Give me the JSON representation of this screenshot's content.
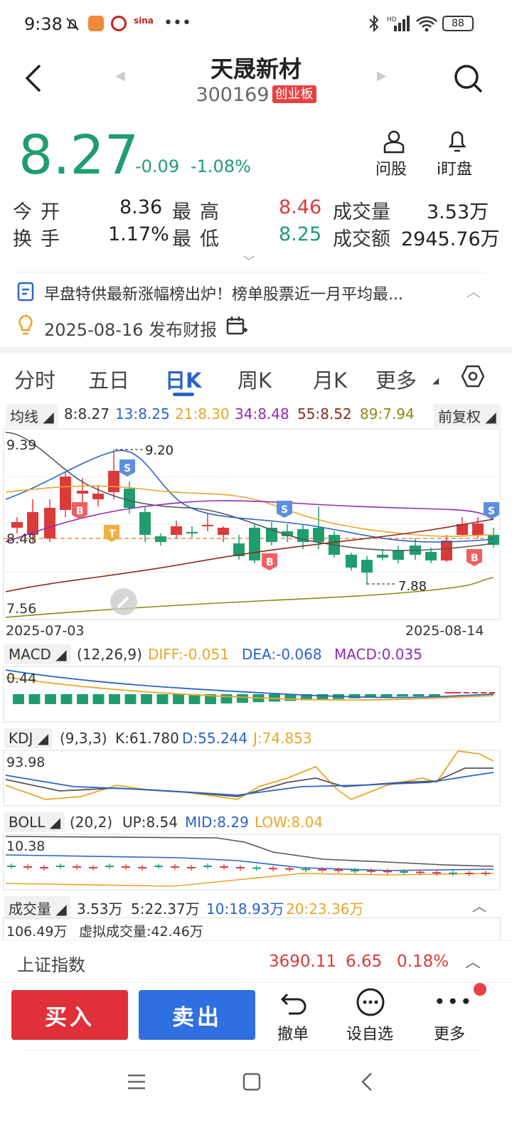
{
  "status_bar": {
    "time": "9:38",
    "battery": "88"
  },
  "header": {
    "title": "天晟新材",
    "code": "300169",
    "board_badge": "创业板"
  },
  "quote": {
    "price": "8.27",
    "change": "-0.09",
    "change_pct": "-1.08%",
    "btn_stock": "问股",
    "btn_watch": "i盯盘"
  },
  "stats": {
    "open_label": "今开",
    "open": "8.36",
    "high_label": "最高",
    "high": "8.46",
    "volume_label": "成交量",
    "volume": "3.53万",
    "turnover_label": "换手",
    "turnover": "1.17%",
    "low_label": "最低",
    "low": "8.25",
    "amount_label": "成交额",
    "amount": "2945.76万"
  },
  "news": {
    "headline": "早盘特供最新涨幅榜出炉！榜单股票近一月平均最...",
    "report": "2025-08-16 发布财报"
  },
  "tabs": [
    "分时",
    "五日",
    "日K",
    "周K",
    "月K",
    "更多"
  ],
  "ma_bar": {
    "label": "均线",
    "ma8": "8:8.27",
    "ma13": "13:8.25",
    "ma21": "21:8.30",
    "ma34": "34:8.48",
    "ma55": "55:8.52",
    "ma89": "89:7.94",
    "adjust": "前复权"
  },
  "kchart": {
    "y_max": "9.39",
    "y_mid": "8.48",
    "y_min": "7.56",
    "high_note": "9.20",
    "low_note": "7.88",
    "date_start": "2025-07-03",
    "date_end": "2025-08-14"
  },
  "macd": {
    "label": "MACD",
    "params": "(12,26,9)",
    "diff": "DIFF:-0.051",
    "dea": "DEA:-0.068",
    "macd": "MACD:0.035",
    "top": "0.44"
  },
  "kdj": {
    "label": "KDJ",
    "params": "(9,3,3)",
    "k": "K:61.780",
    "d": "D:55.244",
    "j": "J:74.853",
    "top": "93.98"
  },
  "boll": {
    "label": "BOLL",
    "params": "(20,2)",
    "up": "UP:8.54",
    "mid": "MID:8.29",
    "low": "LOW:8.04",
    "top": "10.38"
  },
  "vol": {
    "label": "成交量",
    "v": "3.53万",
    "v5": "5:22.37万",
    "v10": "10:18.93万",
    "v20": "20:23.36万",
    "top": "106.49万",
    "virtual": "虚拟成交量:42.46万"
  },
  "index_bar": {
    "name": "上证指数",
    "value": "3690.11",
    "change": "6.65",
    "pct": "0.18%"
  },
  "bottom": {
    "buy": "买入",
    "sell": "卖出",
    "cancel": "撤单",
    "watchlist": "设自选",
    "more": "更多"
  },
  "colors": {
    "up": "#dc3a3a",
    "down": "#1f9e6d",
    "buy": "#e0303a",
    "sell": "#2f6fe0"
  }
}
